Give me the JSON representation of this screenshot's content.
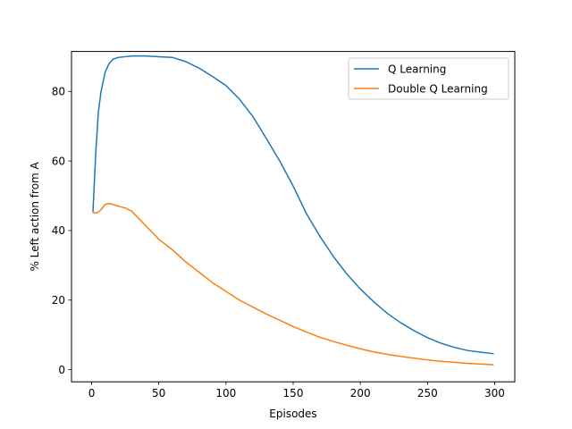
{
  "chart_data": {
    "type": "line",
    "title": "",
    "xlabel": "Episodes",
    "ylabel": "% Left action from A",
    "xlim": [
      -15,
      315
    ],
    "ylim": [
      -3.5,
      91.5
    ],
    "xticks": [
      0,
      50,
      100,
      150,
      200,
      250,
      300
    ],
    "yticks": [
      0,
      20,
      40,
      60,
      80
    ],
    "grid": false,
    "legend_position": "top-right",
    "series": [
      {
        "name": "Q Learning",
        "color": "#1f77b4",
        "x": [
          1,
          3,
          5,
          7,
          10,
          13,
          16,
          20,
          25,
          30,
          40,
          50,
          60,
          70,
          80,
          90,
          100,
          110,
          120,
          130,
          140,
          150,
          160,
          170,
          180,
          190,
          200,
          210,
          220,
          230,
          240,
          250,
          260,
          270,
          280,
          290,
          299
        ],
        "y": [
          45.5,
          62,
          74,
          80,
          85.5,
          88,
          89.3,
          89.8,
          90,
          90.2,
          90.2,
          90,
          89.8,
          88.6,
          86.7,
          84.3,
          81.7,
          77.8,
          72.8,
          66.5,
          60,
          52.8,
          44.8,
          38.3,
          32.5,
          27.5,
          23.2,
          19.5,
          16.2,
          13.5,
          11.2,
          9.2,
          7.6,
          6.4,
          5.5,
          5,
          4.6
        ]
      },
      {
        "name": "Double Q Learning",
        "color": "#ff7f0e",
        "x": [
          1,
          3,
          5,
          7,
          10,
          13,
          16,
          20,
          25,
          30,
          40,
          50,
          60,
          70,
          80,
          90,
          100,
          110,
          120,
          130,
          140,
          150,
          160,
          170,
          180,
          190,
          200,
          210,
          220,
          230,
          240,
          250,
          260,
          270,
          280,
          290,
          299
        ],
        "y": [
          45.2,
          45,
          45.3,
          46,
          47.5,
          47.8,
          47.5,
          47,
          46.5,
          45.5,
          41.5,
          37.5,
          34.5,
          31,
          28,
          25,
          22.5,
          20,
          18,
          16,
          14.2,
          12.4,
          10.8,
          9.3,
          8.1,
          7,
          6,
          5.1,
          4.4,
          3.8,
          3.3,
          2.8,
          2.4,
          2.1,
          1.8,
          1.6,
          1.4
        ]
      }
    ]
  }
}
